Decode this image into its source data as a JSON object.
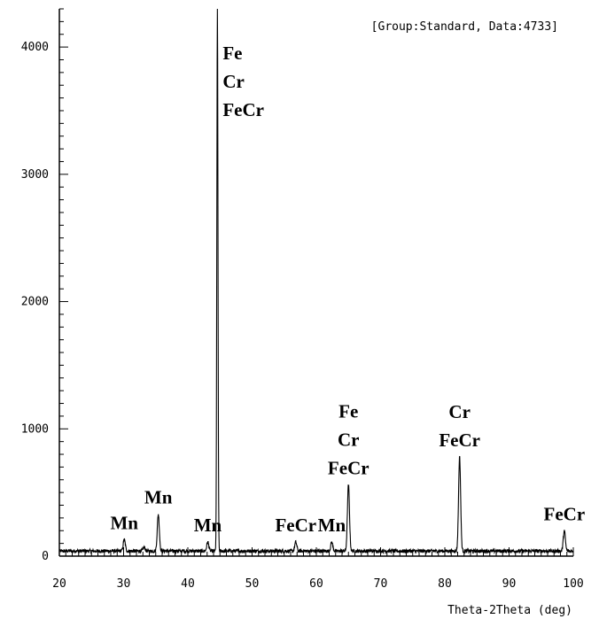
{
  "chart_data": {
    "type": "line",
    "title": "",
    "header": "[Group:Standard, Data:4733]",
    "xlabel": "Theta-2Theta (deg)",
    "ylabel": "",
    "xlim": [
      20,
      100
    ],
    "ylim": [
      0,
      4300
    ],
    "x_ticks": [
      20,
      30,
      40,
      50,
      60,
      70,
      80,
      90,
      100
    ],
    "y_ticks": [
      0,
      1000,
      2000,
      3000,
      4000
    ],
    "grid": false,
    "line_color": "#000000",
    "baseline": 40,
    "peaks": [
      {
        "x": 30.1,
        "y": 130
      },
      {
        "x": 33.2,
        "y": 70
      },
      {
        "x": 35.4,
        "y": 330
      },
      {
        "x": 43.1,
        "y": 110
      },
      {
        "x": 44.6,
        "y": 4300
      },
      {
        "x": 56.8,
        "y": 110
      },
      {
        "x": 62.4,
        "y": 110
      },
      {
        "x": 65.0,
        "y": 560
      },
      {
        "x": 82.3,
        "y": 780
      },
      {
        "x": 98.6,
        "y": 200
      }
    ],
    "annotations": [
      {
        "x": 44.6,
        "labels": [
          "Fe",
          "Cr",
          "FeCr"
        ]
      },
      {
        "x": 30.1,
        "labels": [
          "Mn"
        ]
      },
      {
        "x": 35.4,
        "labels": [
          "Mn"
        ]
      },
      {
        "x": 43.1,
        "labels": [
          "Mn"
        ]
      },
      {
        "x": 56.8,
        "labels": [
          "FeCr"
        ]
      },
      {
        "x": 62.4,
        "labels": [
          "Mn"
        ]
      },
      {
        "x": 65.0,
        "labels": [
          "Fe",
          "Cr",
          "FeCr"
        ]
      },
      {
        "x": 82.3,
        "labels": [
          "Cr",
          "FeCr"
        ]
      },
      {
        "x": 98.6,
        "labels": [
          "FeCr"
        ]
      }
    ]
  }
}
